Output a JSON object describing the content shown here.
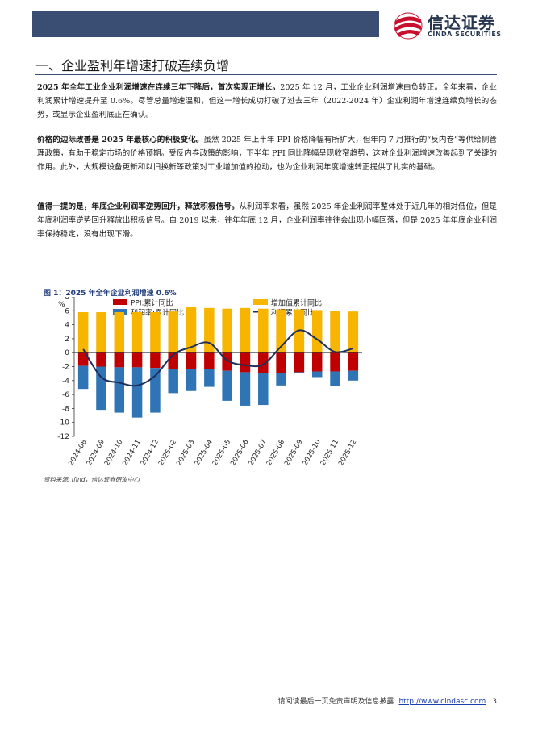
{
  "header": {
    "logo_cn": "信达证券",
    "logo_en": "CINDA SECURITIES"
  },
  "section": {
    "title": "一、企业盈利年增速打破连续负增"
  },
  "paragraphs": [
    {
      "bold": "2025 年全年工业企业利润增速在连续三年下降后，首次实现正增长。",
      "text": "2025 年 12 月，工业企业利润增速由负转正。全年来看，企业利润累计增速提升至 0.6%。尽管总量增速温和，但这一增长成功打破了过去三年（2022-2024 年）企业利润年增速连续负增长的态势，或显示企业盈利底正在确认。"
    },
    {
      "bold": "价格的边际改善是 2025 年最核心的积极变化。",
      "text": "虽然 2025 年上半年 PPI 价格降幅有所扩大，但年内 7 月推行的“反内卷”等供给侧管理政策，有助于稳定市场的价格预期。受反内卷政策的影响，下半年 PPI 同比降幅呈现收窄趋势，这对企业利润增速改善起到了关键的作用。此外，大规模设备更新和以旧换新等政策对工业增加值的拉动，也为企业利润年度增速转正提供了扎实的基础。"
    },
    {
      "bold": "值得一提的是，年底企业利润率逆势回升，释放积极信号。",
      "text": "从利润率来看，虽然 2025 年企业利润率整体处于近几年的相对低位，但是年底利润率逆势回升释放出积极信号。自 2019 以来，往年年底 12 月，企业利润率往往会出现小幅回落，但是 2025 年年底企业利润率保持稳定，没有出现下滑。"
    }
  ],
  "figure": {
    "title": "图 1：2025 年全年企业利润增速 0.6%",
    "source": "资料来源: Ifind，信达证券研发中心"
  },
  "chart_data": {
    "type": "bar",
    "ylabel": "%",
    "ylim": [
      -12,
      8
    ],
    "yticks": [
      8,
      6,
      4,
      2,
      0,
      -2,
      -4,
      -6,
      -8,
      -10,
      -12
    ],
    "categories": [
      "2024-08",
      "2024-09",
      "2024-10",
      "2024-11",
      "2024-12",
      "2025-02",
      "2025-03",
      "2025-04",
      "2025-05",
      "2025-06",
      "2025-07",
      "2025-08",
      "2025-09",
      "2025-10",
      "2025-11",
      "2025-12"
    ],
    "legend_position": "top",
    "series": [
      {
        "name": "PPI:累计同比",
        "kind": "bar",
        "color": "#c00000",
        "values": [
          -1.9,
          -2.0,
          -2.1,
          -2.1,
          -2.2,
          -2.3,
          -2.3,
          -2.4,
          -2.6,
          -2.8,
          -2.9,
          -2.9,
          -2.8,
          -2.7,
          -2.7,
          -2.6
        ]
      },
      {
        "name": "增加值累计同比",
        "kind": "bar",
        "color": "#f7b500",
        "values": [
          5.8,
          5.8,
          5.8,
          5.8,
          5.8,
          5.9,
          6.5,
          6.4,
          6.3,
          6.4,
          6.3,
          6.2,
          6.2,
          6.1,
          6.0,
          5.9
        ]
      },
      {
        "name": "利润率:累计同比",
        "kind": "bar",
        "color": "#2f75b5",
        "values": [
          -5.2,
          -8.2,
          -8.6,
          -9.3,
          -8.6,
          -5.8,
          -5.5,
          -4.9,
          -6.9,
          -7.6,
          -7.5,
          -4.7,
          -2.9,
          -3.5,
          -4.8,
          -4.0
        ]
      },
      {
        "name": "利润累计同比",
        "kind": "line",
        "color": "#1f2d5a",
        "values": [
          0.5,
          -3.5,
          -4.3,
          -4.7,
          -3.3,
          -0.3,
          0.8,
          1.4,
          -1.1,
          -1.8,
          -1.7,
          0.9,
          3.2,
          1.9,
          0.1,
          0.6
        ]
      }
    ]
  },
  "footer": {
    "text": "请阅读最后一页免责声明及信息披露",
    "link": "http://www.cindasc.com",
    "page": "3"
  }
}
